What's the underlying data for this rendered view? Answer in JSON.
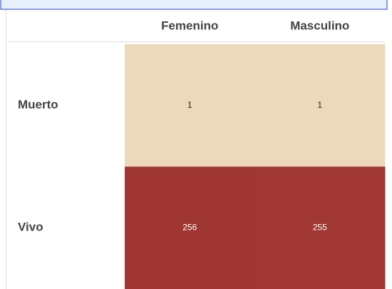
{
  "chart_data": {
    "type": "heatmap",
    "x_categories": [
      "Femenino",
      "Masculino"
    ],
    "y_categories": [
      "Muerto",
      "Vivo"
    ],
    "values": [
      [
        1,
        1
      ],
      [
        256,
        255
      ]
    ],
    "colorscale": [
      "#ecd9bc",
      "#a03632"
    ]
  }
}
